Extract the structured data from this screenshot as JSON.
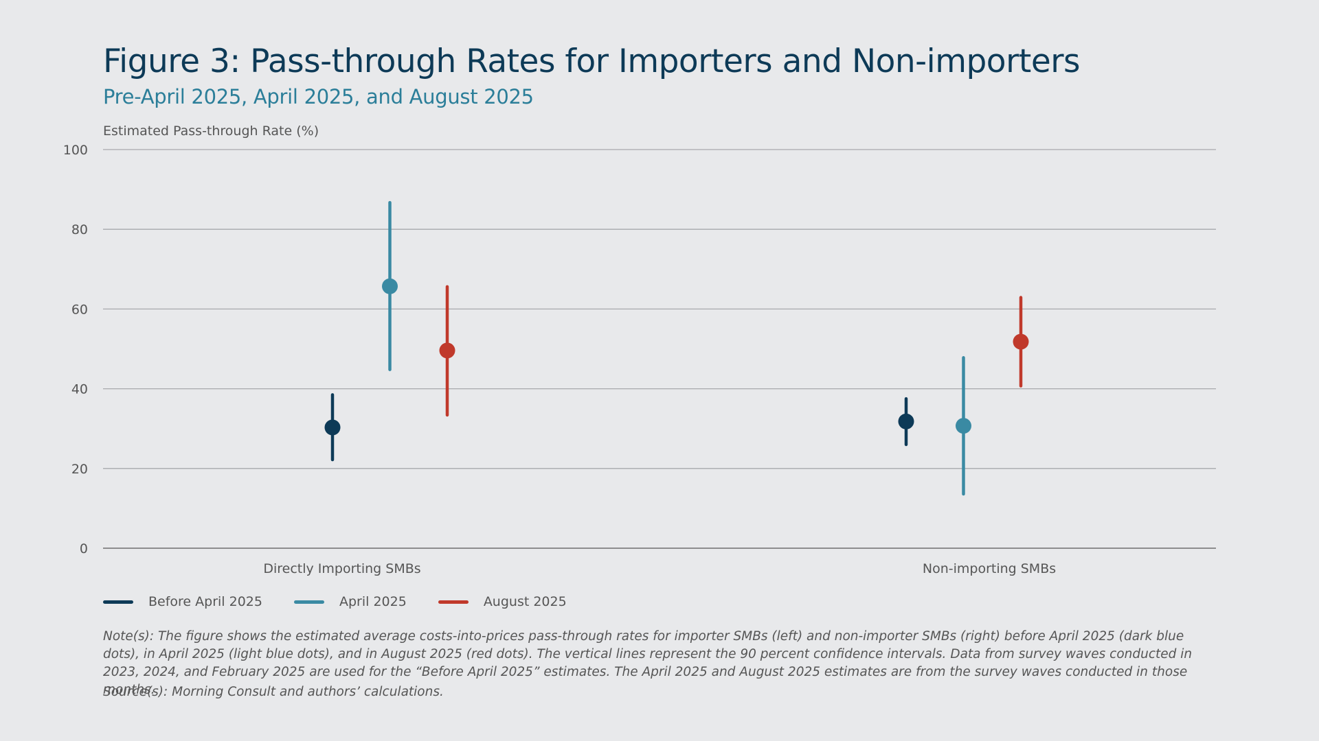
{
  "chart_data": {
    "type": "scatter",
    "title": "Figure 3: Pass-through Rates for Importers and Non-importers",
    "subtitle": "Pre-April 2025, April 2025, and August 2025",
    "ylabel": "Estimated Pass-through Rate (%)",
    "xlabel": "",
    "ylim": [
      0,
      100
    ],
    "yticks": [
      0,
      20,
      40,
      60,
      80,
      100
    ],
    "grid": true,
    "legend_position": "bottom-left",
    "categories": [
      "Directly Importing SMBs",
      "Non-importing SMBs"
    ],
    "series": [
      {
        "name": "Before April 2025",
        "color": "#0d3a57",
        "points": [
          {
            "value": 30.3,
            "low": 22.2,
            "high": 38.5
          },
          {
            "value": 31.8,
            "low": 26.0,
            "high": 37.5
          }
        ]
      },
      {
        "name": "April 2025",
        "color": "#3a8aa3",
        "points": [
          {
            "value": 65.7,
            "low": 44.8,
            "high": 86.7
          },
          {
            "value": 30.7,
            "low": 13.6,
            "high": 47.8
          }
        ]
      },
      {
        "name": "August 2025",
        "color": "#c0392b",
        "points": [
          {
            "value": 49.6,
            "low": 33.4,
            "high": 65.6
          },
          {
            "value": 51.8,
            "low": 40.7,
            "high": 62.9
          }
        ]
      }
    ]
  },
  "note": "Note(s): The figure shows the estimated average costs-into-prices pass-through rates for importer SMBs (left) and non-importer SMBs (right) before April 2025 (dark blue dots), in April 2025 (light blue dots), and in August 2025 (red dots). The vertical lines represent the 90 percent confidence intervals. Data from survey waves conducted in 2023, 2024, and February 2025 are used for the “Before April 2025” estimates. The April 2025 and August 2025 estimates are from the survey waves conducted in those months.",
  "source": "Source(s): Morning Consult and authors’ calculations."
}
